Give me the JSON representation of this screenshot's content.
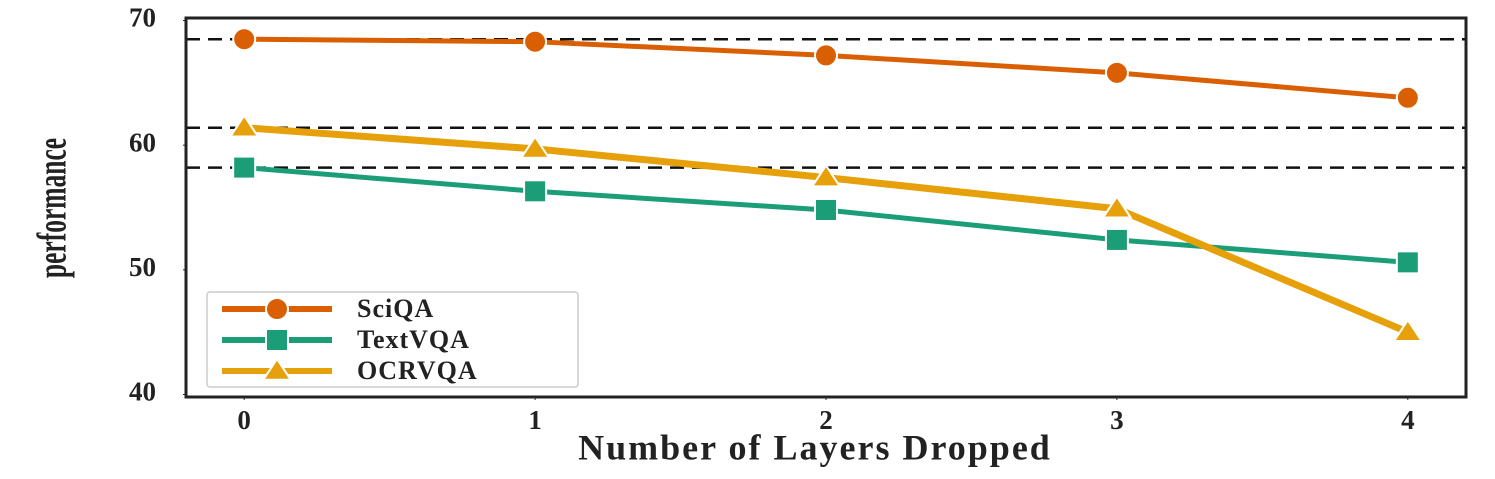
{
  "chart_data": {
    "type": "line",
    "x_label": "Number of Layers Dropped",
    "y_label": "performance",
    "x": [
      0,
      1,
      2,
      3,
      4
    ],
    "series": [
      {
        "name": "SciQA",
        "color": "#d95f02",
        "marker": "circle",
        "values": [
          68.5,
          68.3,
          67.2,
          65.8,
          63.8
        ]
      },
      {
        "name": "TextVQA",
        "color": "#1b9e77",
        "marker": "square",
        "values": [
          58.2,
          56.3,
          54.8,
          52.4,
          50.6
        ]
      },
      {
        "name": "OCRVQA",
        "color": "#e6a00a",
        "marker": "triangle",
        "values": [
          61.4,
          59.7,
          57.4,
          54.9,
          45.0
        ]
      }
    ],
    "hlines": [
      68.5,
      61.4,
      58.2
    ],
    "xlim": [
      -0.2,
      4.2
    ],
    "ylim": [
      39.8,
      70.2
    ],
    "xticks": [
      0,
      1,
      2,
      3,
      4
    ],
    "yticks": [
      40,
      50,
      60,
      70
    ],
    "legend": "lower left",
    "grid": false
  }
}
